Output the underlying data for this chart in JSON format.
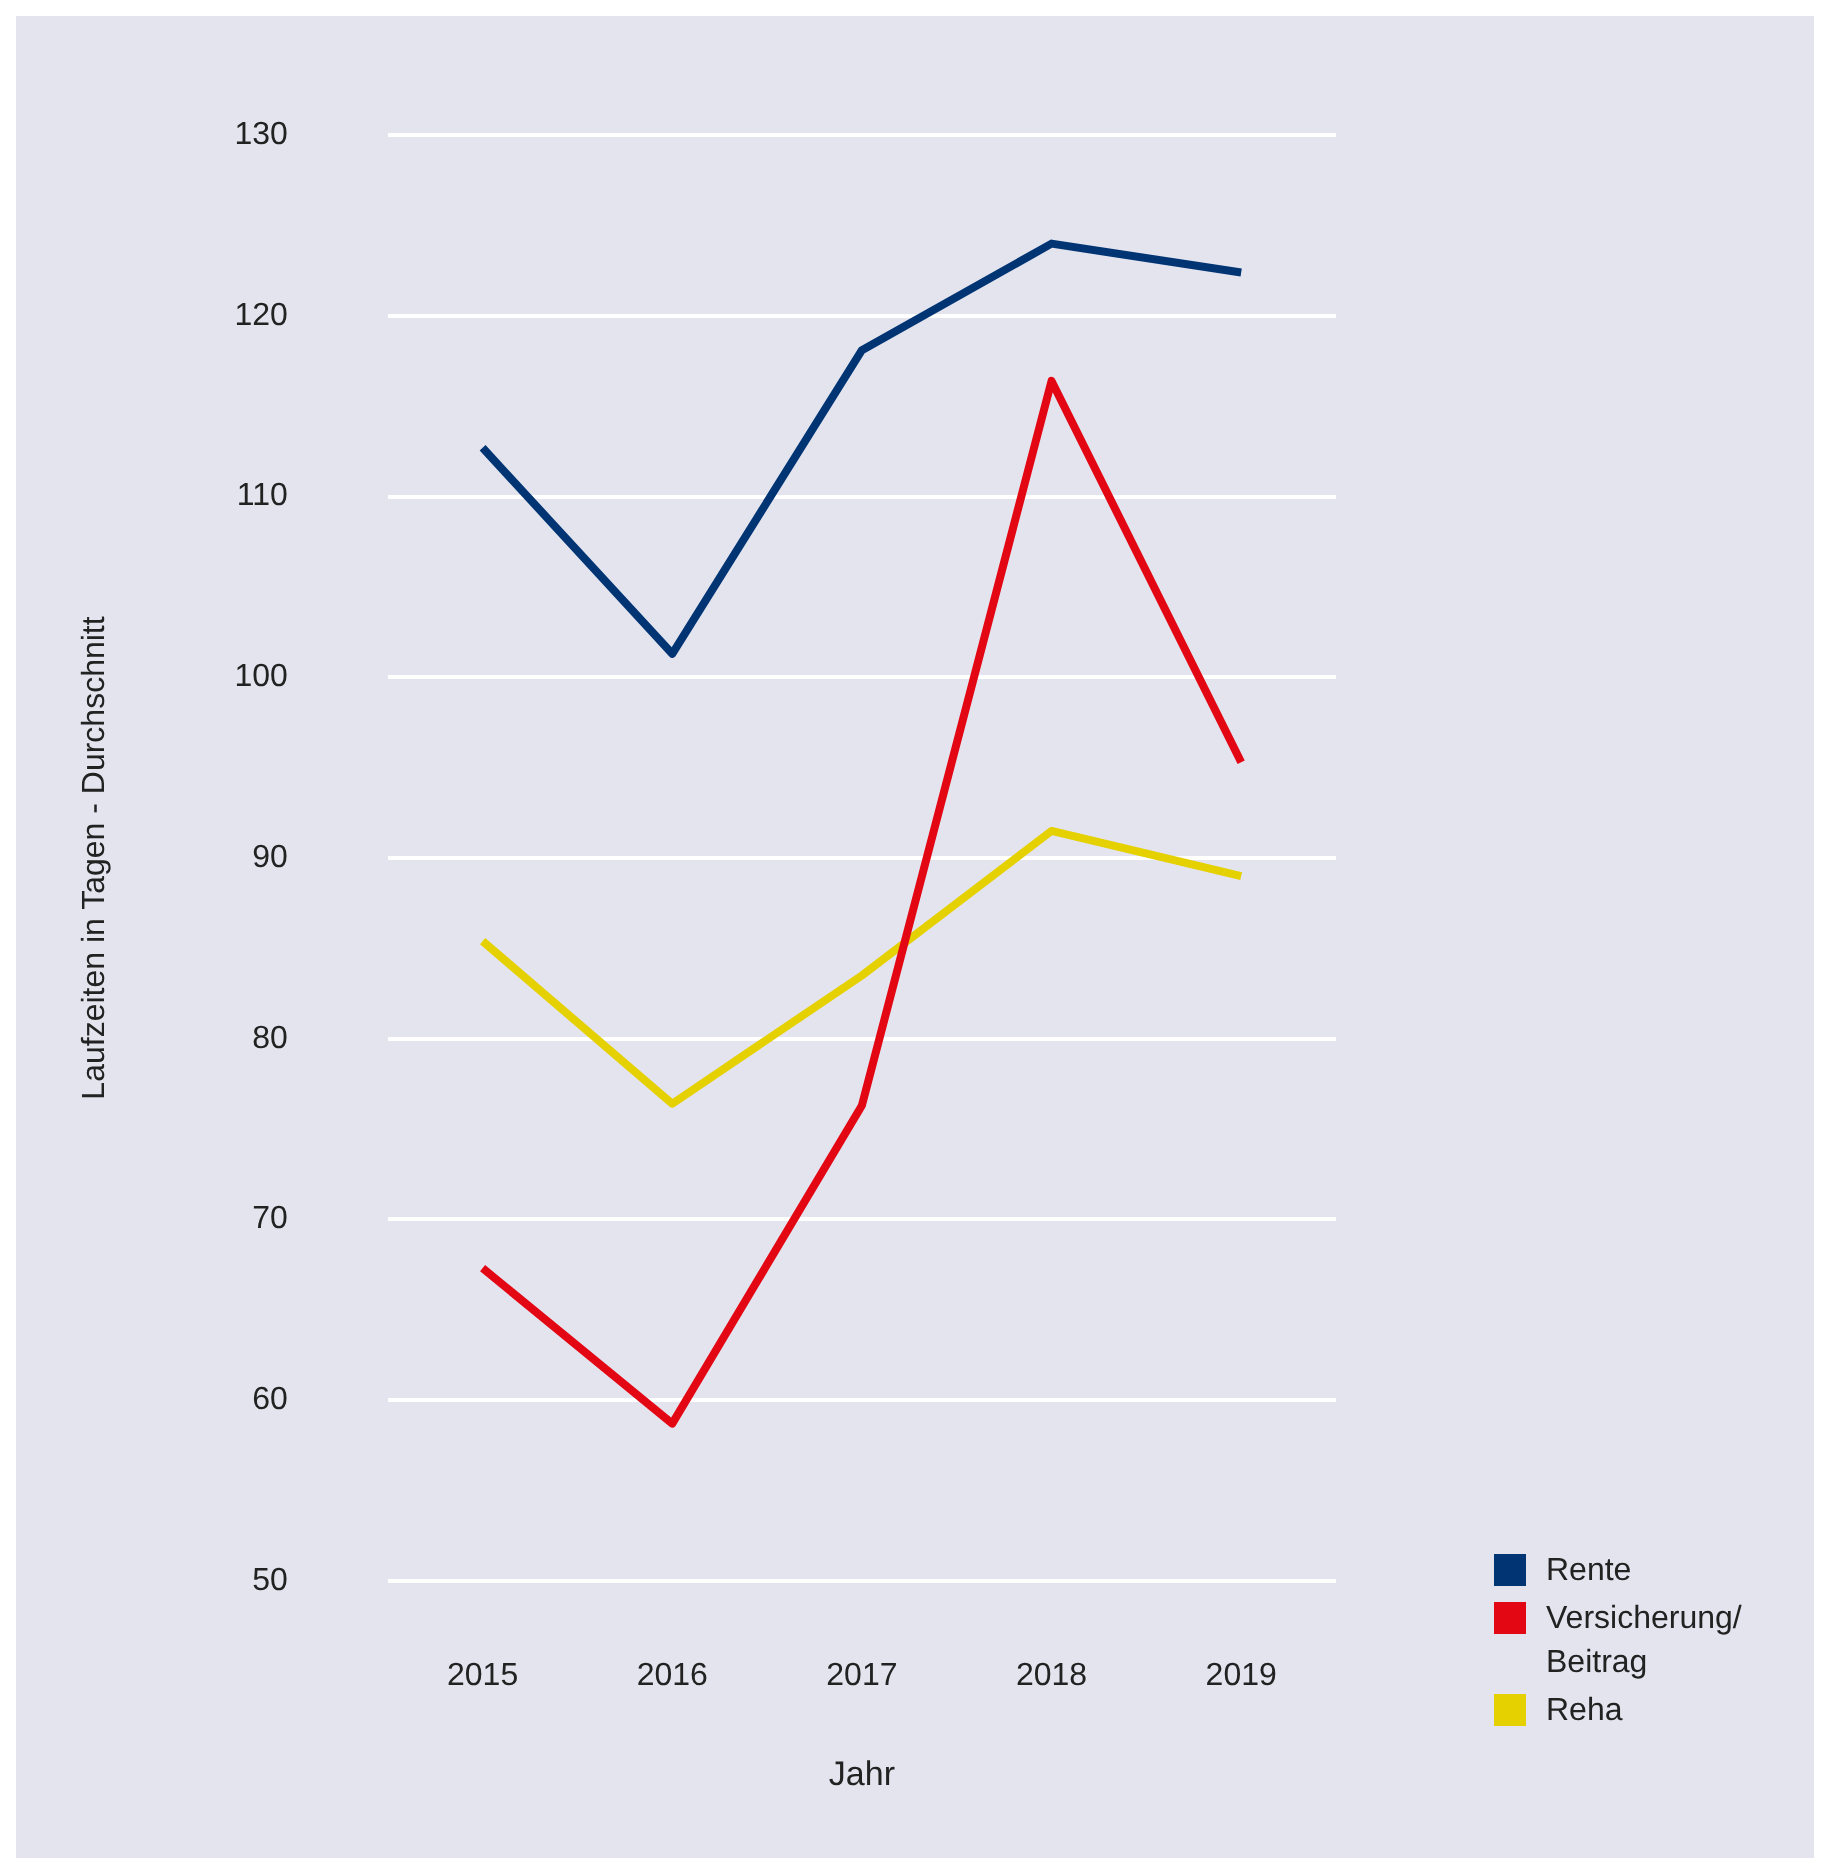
{
  "chart_data": {
    "type": "line",
    "xlabel": "Jahr",
    "ylabel": "Laufzeiten in Tagen - Durchschnitt",
    "categories": [
      "2015",
      "2016",
      "2017",
      "2018",
      "2019"
    ],
    "series": [
      {
        "name": "Rente",
        "color": "#003473",
        "values": [
          112.7,
          101.3,
          118.1,
          124.0,
          122.4
        ]
      },
      {
        "name": "Versicherung/ Beitrag",
        "color": "#e30613",
        "values": [
          67.3,
          58.7,
          76.3,
          116.4,
          95.3
        ]
      },
      {
        "name": "Reha",
        "color": "#e5d000",
        "values": [
          85.4,
          76.4,
          83.5,
          91.5,
          89.0
        ]
      }
    ],
    "ylim": [
      50,
      130
    ],
    "yticks": [
      50,
      60,
      70,
      80,
      90,
      100,
      110,
      120,
      130
    ],
    "grid": "y",
    "legend": "bottom right",
    "marker": "none",
    "line_style": "solid"
  }
}
